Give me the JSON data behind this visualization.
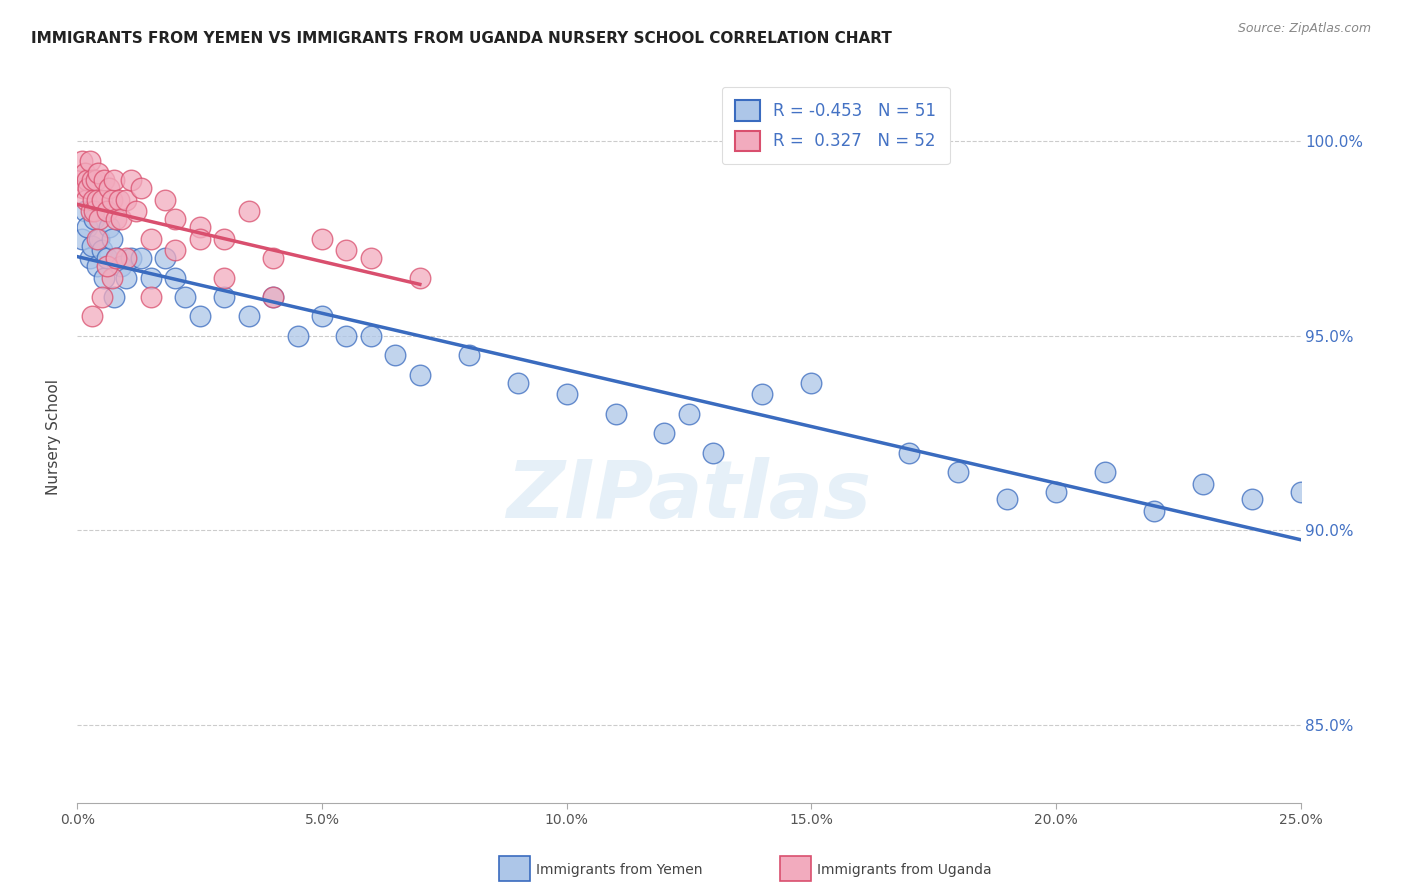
{
  "title": "IMMIGRANTS FROM YEMEN VS IMMIGRANTS FROM UGANDA NURSERY SCHOOL CORRELATION CHART",
  "source": "Source: ZipAtlas.com",
  "ylabel": "Nursery School",
  "xmin": 0.0,
  "xmax": 25.0,
  "ymin": 83.0,
  "ymax": 101.8,
  "yticks": [
    85.0,
    90.0,
    95.0,
    100.0
  ],
  "ytick_labels": [
    "85.0%",
    "90.0%",
    "95.0%",
    "100.0%"
  ],
  "legend_R_yemen": "-0.453",
  "legend_N_yemen": "51",
  "legend_R_uganda": "0.327",
  "legend_N_uganda": "52",
  "color_yemen": "#adc6e8",
  "color_uganda": "#f2abbe",
  "color_line_yemen": "#3a6bbf",
  "color_line_uganda": "#d94f6e",
  "watermark": "ZIPatlas",
  "yemen_x": [
    0.1,
    0.15,
    0.2,
    0.25,
    0.3,
    0.35,
    0.4,
    0.45,
    0.5,
    0.55,
    0.6,
    0.65,
    0.7,
    0.75,
    0.8,
    0.9,
    1.0,
    1.1,
    1.3,
    1.5,
    1.8,
    2.0,
    2.2,
    2.5,
    3.0,
    3.5,
    4.0,
    4.5,
    5.0,
    5.5,
    6.0,
    6.5,
    7.0,
    8.0,
    9.0,
    10.0,
    11.0,
    12.0,
    12.5,
    13.0,
    14.0,
    15.0,
    17.0,
    18.0,
    19.0,
    20.0,
    21.0,
    22.0,
    23.0,
    24.0,
    25.0
  ],
  "yemen_y": [
    97.5,
    98.2,
    97.8,
    97.0,
    97.3,
    98.0,
    96.8,
    97.5,
    97.2,
    96.5,
    97.0,
    97.8,
    97.5,
    96.0,
    97.0,
    96.8,
    96.5,
    97.0,
    97.0,
    96.5,
    97.0,
    96.5,
    96.0,
    95.5,
    96.0,
    95.5,
    96.0,
    95.0,
    95.5,
    95.0,
    95.0,
    94.5,
    94.0,
    94.5,
    93.8,
    93.5,
    93.0,
    92.5,
    93.0,
    92.0,
    93.5,
    93.8,
    92.0,
    91.5,
    90.8,
    91.0,
    91.5,
    90.5,
    91.2,
    90.8,
    91.0
  ],
  "uganda_x": [
    0.05,
    0.1,
    0.12,
    0.15,
    0.18,
    0.2,
    0.22,
    0.25,
    0.28,
    0.3,
    0.32,
    0.35,
    0.38,
    0.4,
    0.42,
    0.45,
    0.5,
    0.55,
    0.6,
    0.65,
    0.7,
    0.75,
    0.8,
    0.85,
    0.9,
    1.0,
    1.1,
    1.2,
    1.3,
    1.5,
    1.8,
    2.0,
    2.5,
    3.0,
    3.5,
    4.0,
    5.0,
    5.5,
    6.0,
    7.0,
    0.3,
    0.5,
    0.7,
    1.0,
    1.5,
    2.0,
    0.4,
    0.6,
    0.8,
    2.5,
    3.0,
    4.0
  ],
  "uganda_y": [
    99.0,
    99.5,
    98.8,
    99.2,
    98.5,
    99.0,
    98.8,
    99.5,
    98.2,
    99.0,
    98.5,
    98.2,
    99.0,
    98.5,
    99.2,
    98.0,
    98.5,
    99.0,
    98.2,
    98.8,
    98.5,
    99.0,
    98.0,
    98.5,
    98.0,
    98.5,
    99.0,
    98.2,
    98.8,
    97.5,
    98.5,
    98.0,
    97.8,
    97.5,
    98.2,
    97.0,
    97.5,
    97.2,
    97.0,
    96.5,
    95.5,
    96.0,
    96.5,
    97.0,
    96.0,
    97.2,
    97.5,
    96.8,
    97.0,
    97.5,
    96.5,
    96.0
  ]
}
